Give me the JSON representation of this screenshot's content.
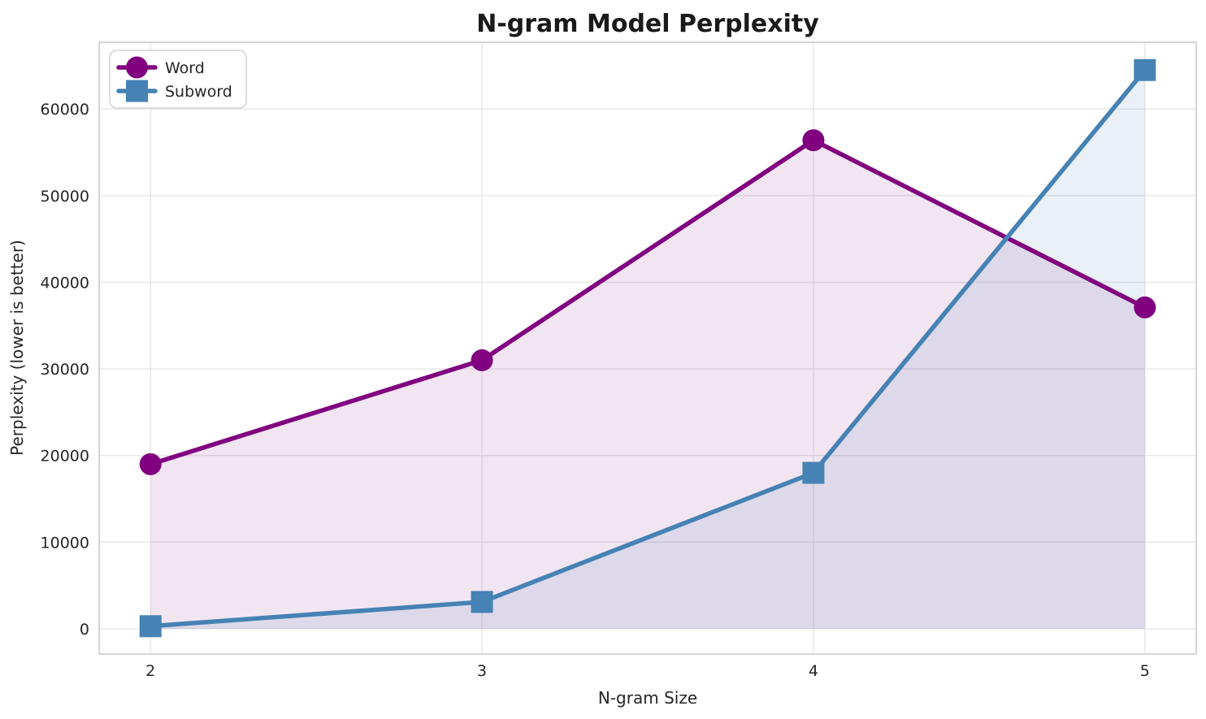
{
  "chart_data": {
    "type": "line",
    "title": "N-gram Model Perplexity",
    "xlabel": "N-gram Size",
    "ylabel": "Perplexity (lower is better)",
    "x": [
      2,
      3,
      4,
      5
    ],
    "xticks": [
      "2",
      "3",
      "4",
      "5"
    ],
    "yticks": [
      0,
      10000,
      20000,
      30000,
      40000,
      50000,
      60000
    ],
    "xlim": [
      1.845,
      5.155
    ],
    "ylim": [
      -2910,
      67710
    ],
    "grid": true,
    "legend_position": "upper left",
    "legend_labels": [
      "Word",
      "Subword"
    ],
    "series": [
      {
        "name": "Word",
        "color": "#800080",
        "marker": "circle",
        "fill_opacity": 0.1,
        "values": [
          19000,
          31000,
          56400,
          37100
        ]
      },
      {
        "name": "Subword",
        "color": "#4682B4",
        "marker": "square",
        "fill_opacity": 0.12,
        "values": [
          300,
          3100,
          18000,
          64500
        ]
      }
    ]
  }
}
